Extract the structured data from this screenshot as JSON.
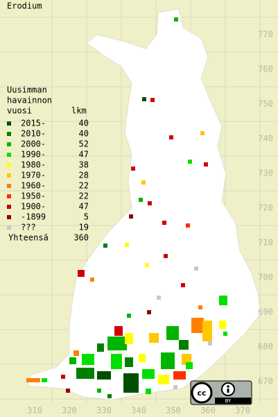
{
  "title": "Erodium",
  "legend": {
    "heading": [
      "Uusimman",
      "havainnon",
      "vuosi"
    ],
    "count_heading": "lkm",
    "items": [
      {
        "label": "2015-",
        "count": 40,
        "color": "#005000"
      },
      {
        "label": "2010-",
        "count": 40,
        "color": "#008000"
      },
      {
        "label": "2000-",
        "count": 52,
        "color": "#00b400"
      },
      {
        "label": "1990-",
        "count": 47,
        "color": "#00e000"
      },
      {
        "label": "1980-",
        "count": 38,
        "color": "#ffff00"
      },
      {
        "label": "1970-",
        "count": 28,
        "color": "#ffc800"
      },
      {
        "label": "1960-",
        "count": 22,
        "color": "#ff8000"
      },
      {
        "label": "1950-",
        "count": 22,
        "color": "#ff3000"
      },
      {
        "label": "1900-",
        "count": 47,
        "color": "#d00000"
      },
      {
        "label": "-1899",
        "count": 5,
        "color": "#900000"
      },
      {
        "label": "???",
        "count": 19,
        "color": "#c8c8c8"
      }
    ],
    "total_label": "Yhteensä",
    "total": 360
  },
  "x_axis": [
    310,
    320,
    330,
    340,
    350,
    360,
    370
  ],
  "y_axis": [
    670,
    680,
    690,
    700,
    710,
    720,
    730,
    740,
    750,
    760,
    770
  ],
  "license": "BY"
}
